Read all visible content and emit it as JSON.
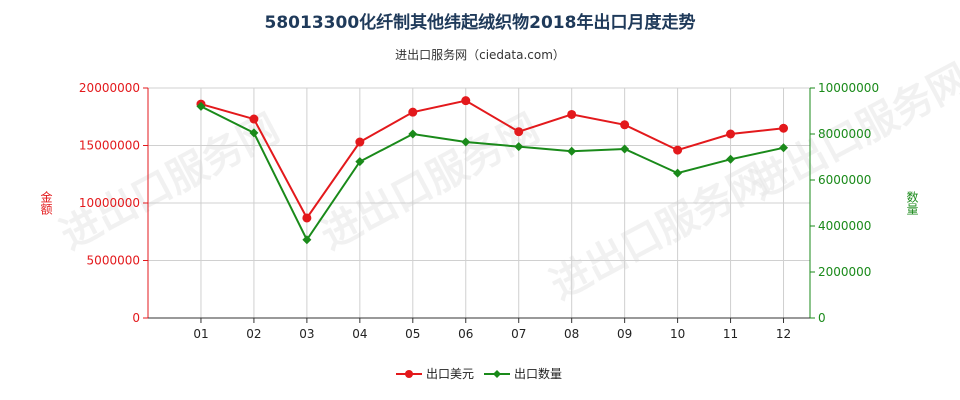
{
  "title": "58013300化纤制其他纬起绒织物2018年出口月度走势",
  "subtitle": "进出口服务网（ciedata.com）",
  "watermark": "进出口服务网",
  "colors": {
    "value_series": "#e3191c",
    "qty_series": "#1a8a1a",
    "grid": "#d0d0d0",
    "axis": "#333333"
  },
  "chart_data": {
    "type": "line",
    "categories": [
      "01",
      "02",
      "03",
      "04",
      "05",
      "06",
      "07",
      "08",
      "09",
      "10",
      "11",
      "12"
    ],
    "left_axis": {
      "label": "金额",
      "ylim": [
        0,
        20000000
      ],
      "ticks": [
        "0",
        "5000000",
        "10000000",
        "15000000",
        "20000000"
      ]
    },
    "right_axis": {
      "label": "数量",
      "ylim": [
        0,
        10000000
      ],
      "ticks": [
        "0",
        "2000000",
        "4000000",
        "6000000",
        "8000000",
        "10000000"
      ]
    },
    "grid": true,
    "legend_position": "bottom",
    "series": [
      {
        "name": "出口美元",
        "axis": "left",
        "values": [
          18600000,
          17300000,
          8700000,
          15300000,
          17900000,
          18900000,
          16200000,
          17700000,
          16800000,
          14600000,
          16000000,
          16500000
        ]
      },
      {
        "name": "出口数量",
        "axis": "right",
        "values": [
          9200000,
          8050000,
          3400000,
          6800000,
          8000000,
          7650000,
          7450000,
          7250000,
          7350000,
          6300000,
          6900000,
          7400000
        ]
      }
    ]
  }
}
